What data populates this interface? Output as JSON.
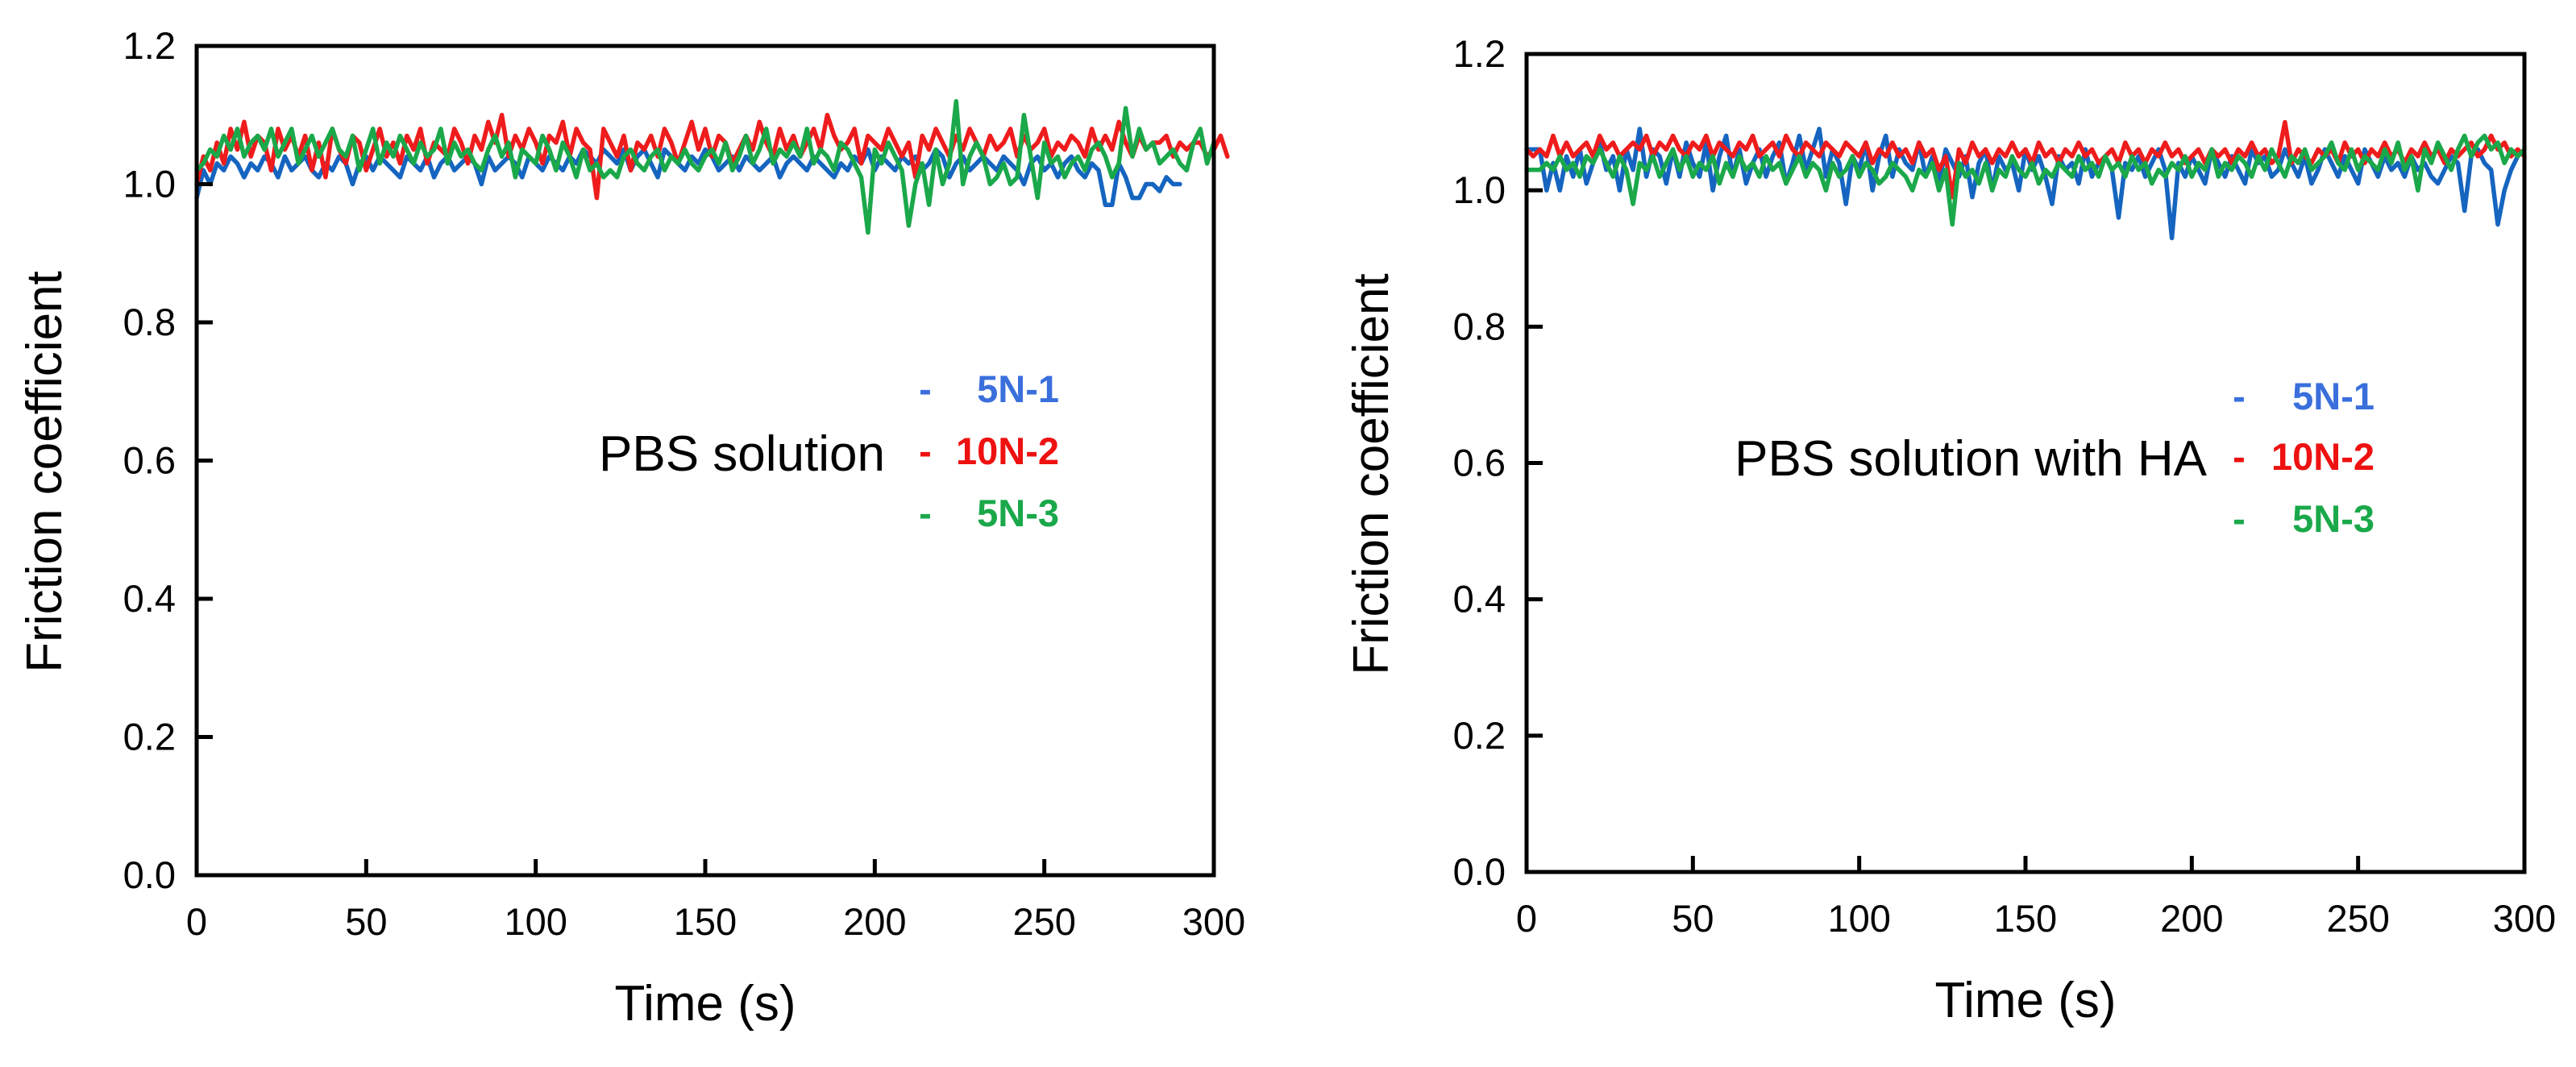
{
  "chart_data": [
    {
      "type": "line",
      "annotation": "PBS solution",
      "xlabel": "Time (s)",
      "ylabel": "Friction coefficient",
      "xlim": [
        0,
        300
      ],
      "ylim": [
        0,
        1.2
      ],
      "xticks": [
        0,
        50,
        100,
        150,
        200,
        250,
        300
      ],
      "xtick_labels": [
        "0",
        "50",
        "100",
        "150",
        "200",
        "250",
        "300"
      ],
      "yticks": [
        0,
        0.2,
        0.4,
        0.6,
        0.8,
        1.0,
        1.2
      ],
      "ytick_labels": [
        "0.0",
        "0.2",
        "0.4",
        "0.6",
        "0.8",
        "1.0",
        "1.2"
      ],
      "grid": false,
      "legend": {
        "position": "center-right",
        "entries": [
          {
            "dash": "-",
            "label": "5N-1",
            "color": "#3a6fdc"
          },
          {
            "dash": "-",
            "label": "10N-2",
            "color": "#ee1111"
          },
          {
            "dash": "-",
            "label": "5N-3",
            "color": "#1aa84a"
          }
        ]
      },
      "series": [
        {
          "name": "5N-1",
          "color": "#1565c0",
          "x_start": 0,
          "x_step": 2,
          "values": [
            0.98,
            1.02,
            1.0,
            1.03,
            1.02,
            1.04,
            1.03,
            1.01,
            1.03,
            1.02,
            1.04,
            1.03,
            1.01,
            1.04,
            1.02,
            1.03,
            1.04,
            1.02,
            1.01,
            1.03,
            1.02,
            1.04,
            1.03,
            1.0,
            1.03,
            1.04,
            1.02,
            1.04,
            1.03,
            1.02,
            1.01,
            1.04,
            1.03,
            1.02,
            1.04,
            1.01,
            1.03,
            1.04,
            1.02,
            1.03,
            1.04,
            1.03,
            1.0,
            1.04,
            1.02,
            1.03,
            1.04,
            1.03,
            1.01,
            1.04,
            1.03,
            1.02,
            1.04,
            1.03,
            1.02,
            1.04,
            1.03,
            1.05,
            1.04,
            1.03,
            1.05,
            1.04,
            1.03,
            1.05,
            1.02,
            1.04,
            1.05,
            1.03,
            1.01,
            1.05,
            1.04,
            1.03,
            1.02,
            1.04,
            1.03,
            1.05,
            1.04,
            1.02,
            1.03,
            1.04,
            1.02,
            1.04,
            1.03,
            1.02,
            1.03,
            1.04,
            1.01,
            1.03,
            1.04,
            1.03,
            1.02,
            1.04,
            1.03,
            1.02,
            1.01,
            1.03,
            1.02,
            1.04,
            1.03,
            1.05,
            1.02,
            1.04,
            1.03,
            1.02,
            1.04,
            1.03,
            1.04,
            1.02,
            1.03,
            1.05,
            1.04,
            1.01,
            1.03,
            1.04,
            1.02,
            1.03,
            1.04,
            1.03,
            1.02,
            1.04,
            1.03,
            1.02,
            1.0,
            1.03,
            1.04,
            1.02,
            1.03,
            1.01,
            1.03,
            1.04,
            1.02,
            1.01,
            1.03,
            1.02,
            0.97,
            0.97,
            1.03,
            1.01,
            0.98,
            0.98,
            1.0,
            1.0,
            0.99,
            1.01,
            1.0,
            1.0
          ]
        },
        {
          "name": "10N-2",
          "color": "#ee1c1c",
          "x_start": 0,
          "x_step": 2,
          "values": [
            1.0,
            1.04,
            1.02,
            1.06,
            1.03,
            1.08,
            1.05,
            1.09,
            1.04,
            1.07,
            1.06,
            1.02,
            1.08,
            1.05,
            1.07,
            1.04,
            1.07,
            1.02,
            1.06,
            1.01,
            1.08,
            1.05,
            1.03,
            1.07,
            1.06,
            1.02,
            1.05,
            1.08,
            1.04,
            1.06,
            1.03,
            1.07,
            1.05,
            1.08,
            1.03,
            1.06,
            1.05,
            1.04,
            1.08,
            1.06,
            1.03,
            1.07,
            1.05,
            1.09,
            1.06,
            1.1,
            1.04,
            1.07,
            1.05,
            1.08,
            1.06,
            1.03,
            1.07,
            1.06,
            1.09,
            1.04,
            1.08,
            1.06,
            1.05,
            0.98,
            1.08,
            1.06,
            1.04,
            1.07,
            1.02,
            1.06,
            1.05,
            1.07,
            1.04,
            1.08,
            1.06,
            1.03,
            1.06,
            1.09,
            1.05,
            1.08,
            1.04,
            1.07,
            1.06,
            1.03,
            1.05,
            1.07,
            1.05,
            1.09,
            1.06,
            1.04,
            1.08,
            1.05,
            1.07,
            1.04,
            1.06,
            1.08,
            1.05,
            1.1,
            1.07,
            1.05,
            1.06,
            1.08,
            1.03,
            1.07,
            1.06,
            1.05,
            1.08,
            1.06,
            1.04,
            1.06,
            1.01,
            1.07,
            1.05,
            1.08,
            1.06,
            1.04,
            1.07,
            1.05,
            1.08,
            1.06,
            1.04,
            1.07,
            1.05,
            1.06,
            1.08,
            1.04,
            1.07,
            1.05,
            1.06,
            1.08,
            1.04,
            1.06,
            1.05,
            1.07,
            1.06,
            1.04,
            1.08,
            1.05,
            1.07,
            1.05,
            1.09,
            1.06,
            1.04,
            1.07,
            1.05,
            1.06,
            1.06,
            1.07,
            1.04,
            1.06,
            1.05,
            1.06,
            1.06,
            1.04,
            1.05,
            1.07,
            1.04
          ]
        },
        {
          "name": "5N-3",
          "color": "#1aa84a",
          "x_start": 0,
          "x_step": 2,
          "values": [
            1.02,
            1.03,
            1.05,
            1.04,
            1.07,
            1.05,
            1.08,
            1.04,
            1.06,
            1.07,
            1.05,
            1.08,
            1.04,
            1.06,
            1.08,
            1.03,
            1.05,
            1.07,
            1.04,
            1.06,
            1.08,
            1.05,
            1.04,
            1.07,
            1.02,
            1.05,
            1.08,
            1.03,
            1.06,
            1.04,
            1.07,
            1.05,
            1.03,
            1.06,
            1.04,
            1.05,
            1.08,
            1.03,
            1.06,
            1.04,
            1.05,
            1.03,
            1.02,
            1.05,
            1.07,
            1.04,
            1.06,
            1.01,
            1.05,
            1.04,
            1.03,
            1.07,
            1.05,
            1.02,
            1.06,
            1.04,
            1.01,
            1.05,
            1.02,
            1.03,
            1.01,
            1.02,
            1.01,
            1.04,
            1.05,
            1.03,
            1.02,
            1.04,
            1.05,
            1.02,
            1.04,
            1.03,
            1.05,
            1.03,
            1.02,
            1.04,
            1.05,
            1.03,
            1.06,
            1.02,
            1.04,
            1.07,
            1.03,
            1.05,
            1.08,
            1.03,
            1.05,
            1.04,
            1.06,
            1.04,
            1.08,
            1.03,
            1.05,
            1.04,
            1.02,
            1.06,
            1.05,
            1.03,
            1.01,
            0.93,
            1.05,
            1.03,
            1.06,
            1.04,
            1.02,
            0.94,
            1.0,
            1.03,
            0.97,
            1.05,
            1.0,
            1.03,
            1.12,
            1.0,
            1.04,
            1.06,
            1.04,
            1.0,
            1.01,
            1.03,
            1.0,
            1.01,
            1.1,
            1.04,
            0.98,
            1.06,
            1.03,
            1.04,
            1.01,
            1.03,
            1.04,
            1.02,
            1.05,
            1.06,
            1.04,
            1.01,
            1.03,
            1.11,
            1.04,
            1.08,
            1.05,
            1.06,
            1.03,
            1.04,
            1.05,
            1.03,
            1.02,
            1.06,
            1.08,
            1.03,
            1.06
          ]
        }
      ]
    },
    {
      "type": "line",
      "annotation": "PBS solution with HA",
      "xlabel": "Time (s)",
      "ylabel": "Friction coefficient",
      "xlim": [
        0,
        300
      ],
      "ylim": [
        0,
        1.2
      ],
      "xticks": [
        0,
        50,
        100,
        150,
        200,
        250,
        300
      ],
      "xtick_labels": [
        "0",
        "50",
        "100",
        "150",
        "200",
        "250",
        "300"
      ],
      "yticks": [
        0,
        0.2,
        0.4,
        0.6,
        0.8,
        1.0,
        1.2
      ],
      "ytick_labels": [
        "0.0",
        "0.2",
        "0.4",
        "0.6",
        "0.8",
        "1.0",
        "1.2"
      ],
      "grid": false,
      "legend": {
        "position": "center-right",
        "entries": [
          {
            "dash": "-",
            "label": "5N-1",
            "color": "#3a6fdc"
          },
          {
            "dash": "-",
            "label": "10N-2",
            "color": "#ee1111"
          },
          {
            "dash": "-",
            "label": "5N-3",
            "color": "#1aa84a"
          }
        ]
      },
      "series": [
        {
          "name": "5N-1",
          "color": "#1565c0",
          "x_start": 0,
          "x_step": 2,
          "values": [
            1.06,
            1.06,
            1.06,
            1.0,
            1.04,
            1.0,
            1.05,
            1.02,
            1.06,
            1.01,
            1.04,
            1.07,
            1.03,
            1.05,
            1.0,
            1.06,
            1.03,
            1.09,
            1.02,
            1.06,
            1.05,
            1.01,
            1.06,
            1.02,
            1.07,
            1.04,
            1.02,
            1.07,
            1.0,
            1.05,
            1.08,
            1.02,
            1.06,
            1.01,
            1.04,
            1.06,
            1.02,
            1.05,
            1.07,
            1.01,
            1.04,
            1.08,
            1.03,
            1.06,
            1.09,
            1.02,
            1.06,
            1.04,
            0.98,
            1.05,
            1.03,
            1.07,
            1.0,
            1.05,
            1.08,
            1.02,
            1.06,
            1.04,
            1.03,
            1.07,
            1.02,
            1.05,
            1.01,
            1.06,
            1.04,
            1.02,
            1.05,
            0.99,
            1.04,
            1.06,
            1.0,
            1.05,
            1.03,
            1.04,
            1.0,
            1.06,
            1.03,
            1.05,
            1.02,
            0.98,
            1.05,
            1.03,
            1.04,
            1.01,
            1.06,
            1.02,
            1.04,
            1.05,
            1.03,
            0.96,
            1.04,
            1.03,
            1.05,
            1.02,
            1.04,
            1.06,
            1.03,
            0.93,
            1.04,
            1.02,
            1.05,
            1.03,
            1.01,
            1.06,
            1.04,
            1.02,
            1.05,
            1.03,
            1.01,
            1.06,
            1.04,
            1.05,
            1.02,
            1.03,
            1.06,
            1.04,
            1.02,
            1.05,
            1.01,
            1.03,
            1.06,
            1.04,
            1.02,
            1.05,
            1.03,
            1.01,
            1.06,
            1.04,
            1.02,
            1.05,
            1.03,
            1.04,
            1.02,
            1.05,
            1.03,
            1.04,
            1.02,
            1.01,
            1.03,
            1.05,
            1.04,
            0.97,
            1.05,
            1.06,
            1.04,
            1.03,
            0.95,
            1.0,
            1.03,
            1.05
          ]
        },
        {
          "name": "10N-2",
          "color": "#ee1c1c",
          "x_start": 0,
          "x_step": 2,
          "values": [
            1.06,
            1.05,
            1.06,
            1.05,
            1.08,
            1.05,
            1.07,
            1.05,
            1.06,
            1.07,
            1.05,
            1.08,
            1.06,
            1.07,
            1.05,
            1.06,
            1.07,
            1.06,
            1.08,
            1.05,
            1.07,
            1.06,
            1.08,
            1.06,
            1.05,
            1.07,
            1.06,
            1.08,
            1.05,
            1.07,
            1.06,
            1.05,
            1.07,
            1.06,
            1.08,
            1.05,
            1.06,
            1.07,
            1.05,
            1.08,
            1.06,
            1.05,
            1.07,
            1.06,
            1.05,
            1.07,
            1.06,
            1.05,
            1.07,
            1.06,
            1.05,
            1.07,
            1.04,
            1.06,
            1.05,
            1.07,
            1.05,
            1.06,
            1.04,
            1.07,
            1.05,
            1.06,
            1.03,
            1.05,
            0.99,
            1.06,
            1.04,
            1.07,
            1.05,
            1.06,
            1.04,
            1.06,
            1.05,
            1.07,
            1.05,
            1.06,
            1.04,
            1.07,
            1.05,
            1.06,
            1.04,
            1.06,
            1.05,
            1.07,
            1.05,
            1.06,
            1.04,
            1.05,
            1.06,
            1.04,
            1.07,
            1.05,
            1.06,
            1.04,
            1.06,
            1.05,
            1.07,
            1.05,
            1.06,
            1.04,
            1.05,
            1.06,
            1.04,
            1.06,
            1.05,
            1.06,
            1.04,
            1.06,
            1.05,
            1.07,
            1.05,
            1.06,
            1.04,
            1.05,
            1.1,
            1.04,
            1.06,
            1.05,
            1.04,
            1.06,
            1.05,
            1.06,
            1.04,
            1.07,
            1.05,
            1.06,
            1.04,
            1.06,
            1.05,
            1.07,
            1.05,
            1.06,
            1.04,
            1.06,
            1.05,
            1.07,
            1.05,
            1.06,
            1.04,
            1.06,
            1.05,
            1.06,
            1.07,
            1.05,
            1.06,
            1.08,
            1.06,
            1.07,
            1.05,
            1.06,
            1.05
          ]
        },
        {
          "name": "5N-3",
          "color": "#1aa84a",
          "x_start": 0,
          "x_step": 2,
          "values": [
            1.03,
            1.03,
            1.03,
            1.04,
            1.03,
            1.05,
            1.03,
            1.04,
            1.02,
            1.05,
            1.04,
            1.06,
            1.04,
            1.02,
            1.05,
            1.03,
            0.98,
            1.04,
            1.03,
            1.05,
            1.02,
            1.04,
            1.06,
            1.03,
            1.05,
            1.02,
            1.04,
            1.03,
            1.05,
            1.01,
            1.04,
            1.02,
            1.05,
            1.03,
            1.04,
            1.02,
            1.05,
            1.03,
            1.04,
            1.01,
            1.03,
            1.05,
            1.02,
            1.04,
            1.03,
            1.0,
            1.04,
            1.02,
            1.03,
            1.05,
            1.02,
            1.04,
            1.03,
            1.01,
            1.02,
            1.04,
            1.03,
            1.02,
            1.0,
            1.03,
            1.02,
            1.04,
            1.0,
            1.03,
            0.95,
            1.04,
            1.02,
            1.03,
            1.01,
            1.04,
            1.0,
            1.03,
            1.02,
            1.05,
            1.03,
            1.02,
            1.04,
            1.01,
            1.03,
            1.02,
            1.04,
            1.03,
            1.02,
            1.05,
            1.03,
            1.04,
            1.02,
            1.05,
            1.03,
            1.04,
            1.02,
            1.05,
            1.03,
            1.04,
            1.01,
            1.03,
            1.02,
            1.04,
            1.03,
            1.05,
            1.02,
            1.04,
            1.03,
            1.06,
            1.02,
            1.04,
            1.03,
            1.05,
            1.04,
            1.02,
            1.05,
            1.03,
            1.06,
            1.04,
            1.02,
            1.05,
            1.04,
            1.06,
            1.03,
            1.04,
            1.05,
            1.07,
            1.04,
            1.03,
            1.06,
            1.03,
            1.05,
            1.04,
            1.03,
            1.06,
            1.04,
            1.07,
            1.03,
            1.05,
            1.0,
            1.06,
            1.04,
            1.07,
            1.05,
            1.03,
            1.06,
            1.08,
            1.05,
            1.07,
            1.08,
            1.06,
            1.07,
            1.04,
            1.06,
            1.05,
            1.06
          ]
        }
      ]
    }
  ]
}
